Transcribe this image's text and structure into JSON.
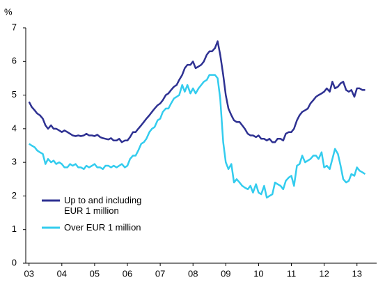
{
  "chart_data": {
    "type": "line",
    "y_label": "%",
    "x": [
      2003,
      2003.08,
      2003.17,
      2003.25,
      2003.33,
      2003.42,
      2003.5,
      2003.58,
      2003.67,
      2003.75,
      2003.83,
      2003.92,
      2004,
      2004.08,
      2004.17,
      2004.25,
      2004.33,
      2004.42,
      2004.5,
      2004.58,
      2004.67,
      2004.75,
      2004.83,
      2004.92,
      2005,
      2005.08,
      2005.17,
      2005.25,
      2005.33,
      2005.42,
      2005.5,
      2005.58,
      2005.67,
      2005.75,
      2005.83,
      2005.92,
      2006,
      2006.08,
      2006.17,
      2006.25,
      2006.33,
      2006.42,
      2006.5,
      2006.58,
      2006.67,
      2006.75,
      2006.83,
      2006.92,
      2007,
      2007.08,
      2007.17,
      2007.25,
      2007.33,
      2007.42,
      2007.5,
      2007.58,
      2007.67,
      2007.75,
      2007.83,
      2007.92,
      2008,
      2008.08,
      2008.17,
      2008.25,
      2008.33,
      2008.42,
      2008.5,
      2008.58,
      2008.67,
      2008.75,
      2008.83,
      2008.92,
      2009,
      2009.08,
      2009.17,
      2009.25,
      2009.33,
      2009.42,
      2009.5,
      2009.58,
      2009.67,
      2009.75,
      2009.83,
      2009.92,
      2010,
      2010.08,
      2010.17,
      2010.25,
      2010.33,
      2010.42,
      2010.5,
      2010.58,
      2010.67,
      2010.75,
      2010.83,
      2010.92,
      2011,
      2011.08,
      2011.17,
      2011.25,
      2011.33,
      2011.42,
      2011.5,
      2011.58,
      2011.67,
      2011.75,
      2011.83,
      2011.92,
      2012,
      2012.08,
      2012.17,
      2012.25,
      2012.33,
      2012.42,
      2012.5,
      2012.58,
      2012.67,
      2012.75,
      2012.83,
      2012.92,
      2013,
      2013.08,
      2013.17,
      2013.25
    ],
    "series": [
      {
        "name": "Up to and including EUR 1 million",
        "color": "#2e3192",
        "values": [
          4.8,
          4.65,
          4.55,
          4.45,
          4.4,
          4.3,
          4.1,
          4.0,
          4.1,
          4.0,
          4.0,
          3.95,
          3.9,
          3.95,
          3.9,
          3.85,
          3.8,
          3.78,
          3.8,
          3.78,
          3.8,
          3.85,
          3.8,
          3.8,
          3.78,
          3.82,
          3.75,
          3.72,
          3.7,
          3.68,
          3.72,
          3.65,
          3.65,
          3.7,
          3.6,
          3.65,
          3.65,
          3.75,
          3.9,
          3.9,
          4.0,
          4.1,
          4.2,
          4.3,
          4.4,
          4.5,
          4.6,
          4.7,
          4.75,
          4.85,
          5.0,
          5.05,
          5.15,
          5.25,
          5.3,
          5.45,
          5.6,
          5.8,
          5.9,
          5.9,
          6.0,
          5.8,
          5.85,
          5.9,
          6.0,
          6.2,
          6.3,
          6.3,
          6.4,
          6.6,
          6.2,
          5.6,
          5.0,
          4.6,
          4.4,
          4.25,
          4.2,
          4.2,
          4.1,
          4.0,
          3.85,
          3.8,
          3.8,
          3.75,
          3.8,
          3.7,
          3.7,
          3.65,
          3.7,
          3.6,
          3.6,
          3.7,
          3.7,
          3.65,
          3.85,
          3.9,
          3.9,
          4.0,
          4.25,
          4.4,
          4.5,
          4.55,
          4.6,
          4.75,
          4.85,
          4.95,
          5.0,
          5.05,
          5.1,
          5.2,
          5.1,
          5.4,
          5.2,
          5.25,
          5.35,
          5.4,
          5.15,
          5.1,
          5.15,
          4.95,
          5.2,
          5.2,
          5.15,
          5.15
        ]
      },
      {
        "name": "Over EUR 1 million",
        "color": "#33ccee",
        "values": [
          3.55,
          3.5,
          3.45,
          3.35,
          3.3,
          3.25,
          2.95,
          3.1,
          3.0,
          3.05,
          2.95,
          3.0,
          2.95,
          2.85,
          2.85,
          2.95,
          2.9,
          2.95,
          2.85,
          2.85,
          2.8,
          2.9,
          2.85,
          2.9,
          2.95,
          2.85,
          2.85,
          2.8,
          2.9,
          2.9,
          2.85,
          2.9,
          2.85,
          2.9,
          2.95,
          2.85,
          2.9,
          3.1,
          3.2,
          3.2,
          3.35,
          3.55,
          3.6,
          3.7,
          3.9,
          4.0,
          4.05,
          4.25,
          4.3,
          4.5,
          4.6,
          4.6,
          4.75,
          4.9,
          4.95,
          5.0,
          5.3,
          5.1,
          5.3,
          5.05,
          5.2,
          5.05,
          5.2,
          5.3,
          5.4,
          5.45,
          5.6,
          5.6,
          5.6,
          5.5,
          4.9,
          3.6,
          3.0,
          2.8,
          2.95,
          2.4,
          2.5,
          2.4,
          2.3,
          2.25,
          2.2,
          2.3,
          2.1,
          2.35,
          2.1,
          2.05,
          2.3,
          1.95,
          2.0,
          2.05,
          2.4,
          2.35,
          2.3,
          2.2,
          2.45,
          2.55,
          2.6,
          2.3,
          2.9,
          2.95,
          3.2,
          3.0,
          3.05,
          3.1,
          3.2,
          3.2,
          3.1,
          3.3,
          2.85,
          2.9,
          2.8,
          3.1,
          3.4,
          3.25,
          2.9,
          2.5,
          2.4,
          2.45,
          2.65,
          2.6,
          2.85,
          2.75,
          2.7,
          2.65
        ]
      }
    ],
    "xlim": [
      2002.9,
      2013.6
    ],
    "xticks": [
      {
        "value": 2003,
        "label": "03"
      },
      {
        "value": 2004,
        "label": "04"
      },
      {
        "value": 2005,
        "label": "05"
      },
      {
        "value": 2006,
        "label": "06"
      },
      {
        "value": 2007,
        "label": "07"
      },
      {
        "value": 2008,
        "label": "08"
      },
      {
        "value": 2009,
        "label": "09"
      },
      {
        "value": 2010,
        "label": "10"
      },
      {
        "value": 2011,
        "label": "11"
      },
      {
        "value": 2012,
        "label": "12"
      },
      {
        "value": 2013,
        "label": "13"
      }
    ],
    "ylim": [
      0,
      7
    ],
    "yticks": [
      0,
      1,
      2,
      3,
      4,
      5,
      6,
      7
    ],
    "legend": "lower left"
  }
}
